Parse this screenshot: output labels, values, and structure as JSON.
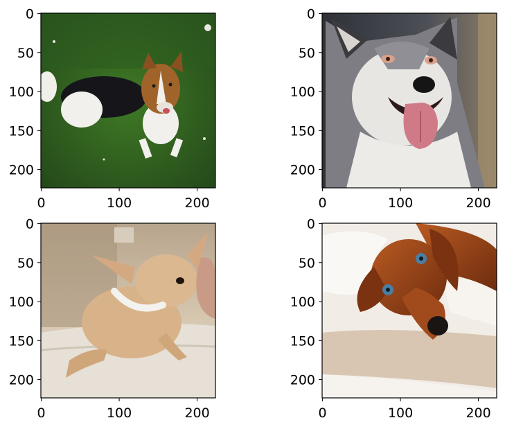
{
  "figure": {
    "panels": [
      {
        "subject": "tricolor collie dog lying on grass",
        "x_ticks": [
          "0",
          "100",
          "200"
        ],
        "y_ticks": [
          "0",
          "50",
          "100",
          "150",
          "200"
        ],
        "colors": {
          "background": "#2e5a1c",
          "coat_dark": "#15151a",
          "coat_tan": "#a0642a",
          "coat_white": "#f2f0ec"
        }
      },
      {
        "subject": "siberian husky with tongue out",
        "x_ticks": [
          "0",
          "100",
          "200"
        ],
        "y_ticks": [
          "0",
          "50",
          "100",
          "150",
          "200"
        ],
        "colors": {
          "background": "#4a4d55",
          "coat_grey": "#8a8a8f",
          "coat_white": "#e8e6e2",
          "tongue": "#d07a88"
        }
      },
      {
        "subject": "tan chihuahua with white collar on towel",
        "x_ticks": [
          "0",
          "100",
          "200"
        ],
        "y_ticks": [
          "0",
          "50",
          "100",
          "150",
          "200"
        ],
        "colors": {
          "background": "#c9b9a4",
          "coat": "#d8b38a",
          "collar": "#f4f2ee",
          "towel": "#e6e0d6"
        }
      },
      {
        "subject": "red dachshund lying on blanket",
        "x_ticks": [
          "0",
          "100",
          "200"
        ],
        "y_ticks": [
          "0",
          "50",
          "100",
          "150",
          "200"
        ],
        "colors": {
          "background": "#f1ece6",
          "coat": "#9a4418",
          "eye": "#4a7fa4",
          "blanket": "#d9c6b2"
        }
      }
    ]
  }
}
